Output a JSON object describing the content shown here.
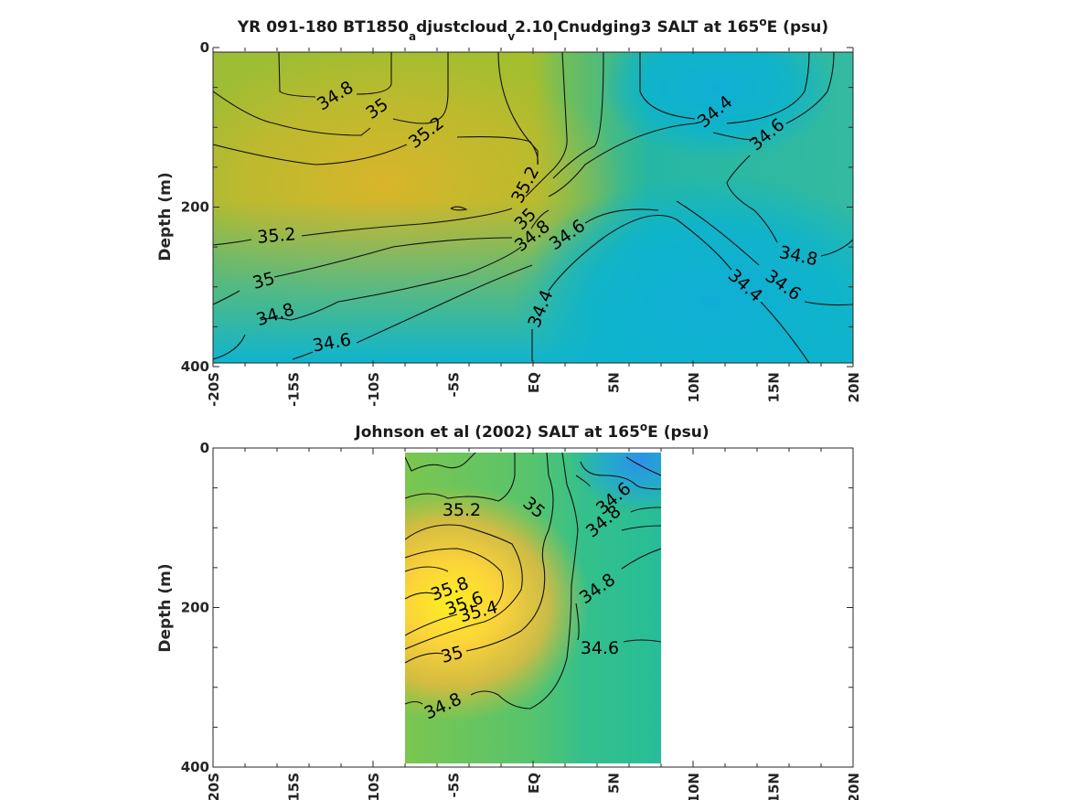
{
  "chart_data": [
    {
      "type": "contour",
      "title_parts": [
        "YR 091-180 BT1850",
        "a",
        "djustcloud",
        "v",
        "2.10",
        "I",
        "Cnudging3 SALT at 165",
        "o",
        "E (psu)"
      ],
      "ylabel": "Depth (m)",
      "ylim": [
        400,
        0
      ],
      "yticks": [
        "0",
        "200",
        "400"
      ],
      "xlim": [
        -20,
        20
      ],
      "xticks": [
        "-20S",
        "-15S",
        "-10S",
        "-5S",
        "EQ",
        "5N",
        "10N",
        "15N",
        "20N"
      ],
      "contour_levels": [
        34.4,
        34.6,
        34.8,
        35,
        35.2
      ],
      "contour_labels": [
        "34.8",
        "35",
        "35.2",
        "34.4",
        "34.6",
        "35.2",
        "35",
        "34.8",
        "34.6",
        "35.2",
        "35",
        "34.8",
        "34.6",
        "34.4",
        "34.8",
        "34.4",
        "34.6"
      ],
      "data_extent_lat": [
        -20,
        20
      ]
    },
    {
      "type": "contour",
      "title_parts": [
        "Johnson et al (2002) SALT at 165",
        "o",
        "E (psu)"
      ],
      "ylabel": "Depth (m)",
      "ylim": [
        400,
        0
      ],
      "yticks": [
        "0",
        "200",
        "400"
      ],
      "xlim": [
        -20,
        20
      ],
      "xticks": [
        "-20S",
        "-15S",
        "-10S",
        "-5S",
        "EQ",
        "5N",
        "10N",
        "15N",
        "20N"
      ],
      "contour_levels": [
        34.4,
        34.6,
        34.8,
        35,
        35.2,
        35.4,
        35.6,
        35.8
      ],
      "contour_labels": [
        "35.2",
        "35",
        "34.6",
        "34.8",
        "35.8",
        "35.6",
        "35.4",
        "34.8",
        "35",
        "34.6",
        "34.8"
      ],
      "data_extent_lat": [
        -8,
        8
      ]
    }
  ]
}
